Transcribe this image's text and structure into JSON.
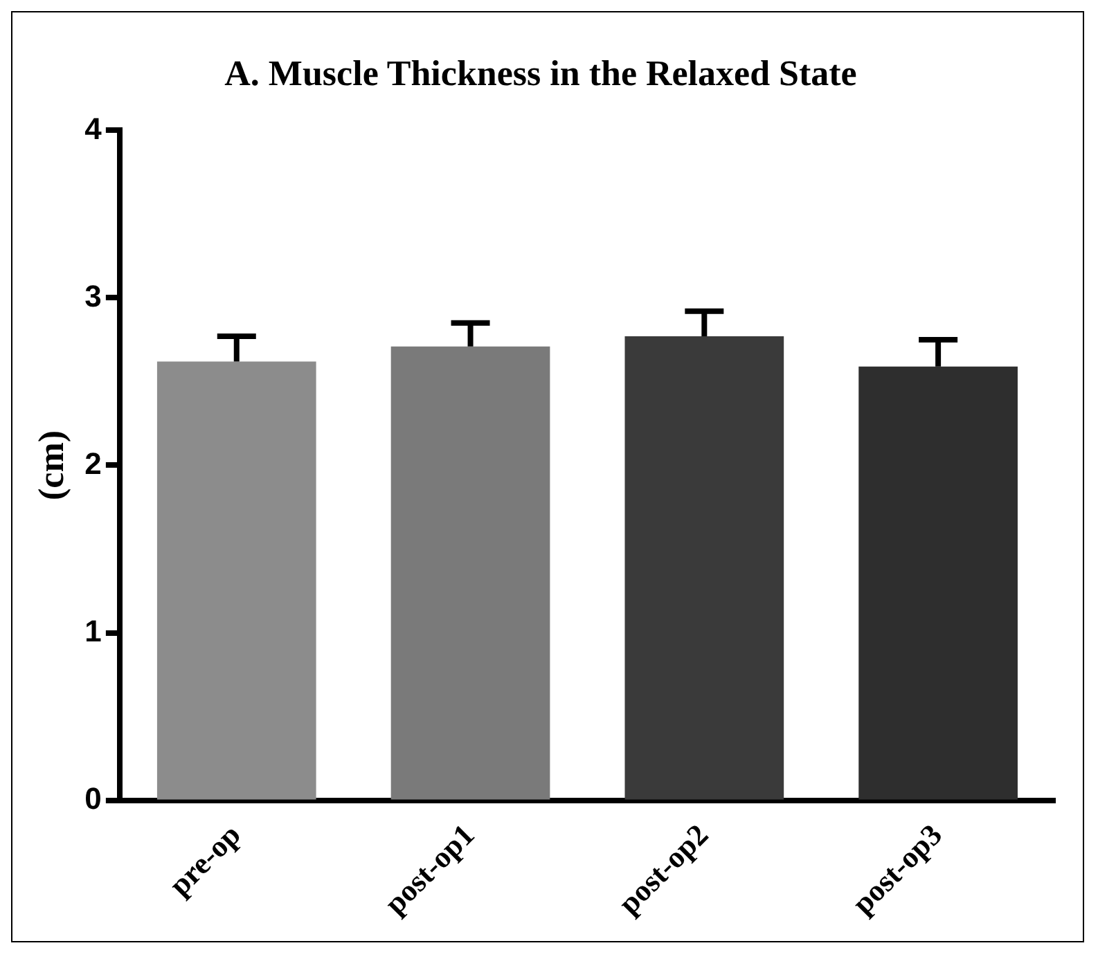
{
  "chart_data": {
    "type": "bar",
    "title": "A. Muscle Thickness in the Relaxed State",
    "ylabel": "(cm)",
    "categories": [
      "pre-op",
      "post-op1",
      "post-op2",
      "post-op3"
    ],
    "values": [
      2.62,
      2.71,
      2.77,
      2.59
    ],
    "errors": [
      [
        2.62,
        2.77
      ],
      [
        2.71,
        2.85
      ],
      [
        2.77,
        2.92
      ],
      [
        2.59,
        2.75
      ]
    ],
    "colors": [
      "#8c8c8c",
      "#7a7a7a",
      "#3a3a3a",
      "#2e2e2e"
    ],
    "ylim": [
      0,
      4
    ],
    "yticks": [
      0,
      1,
      2,
      3,
      4
    ],
    "grid": false,
    "legend": false
  }
}
